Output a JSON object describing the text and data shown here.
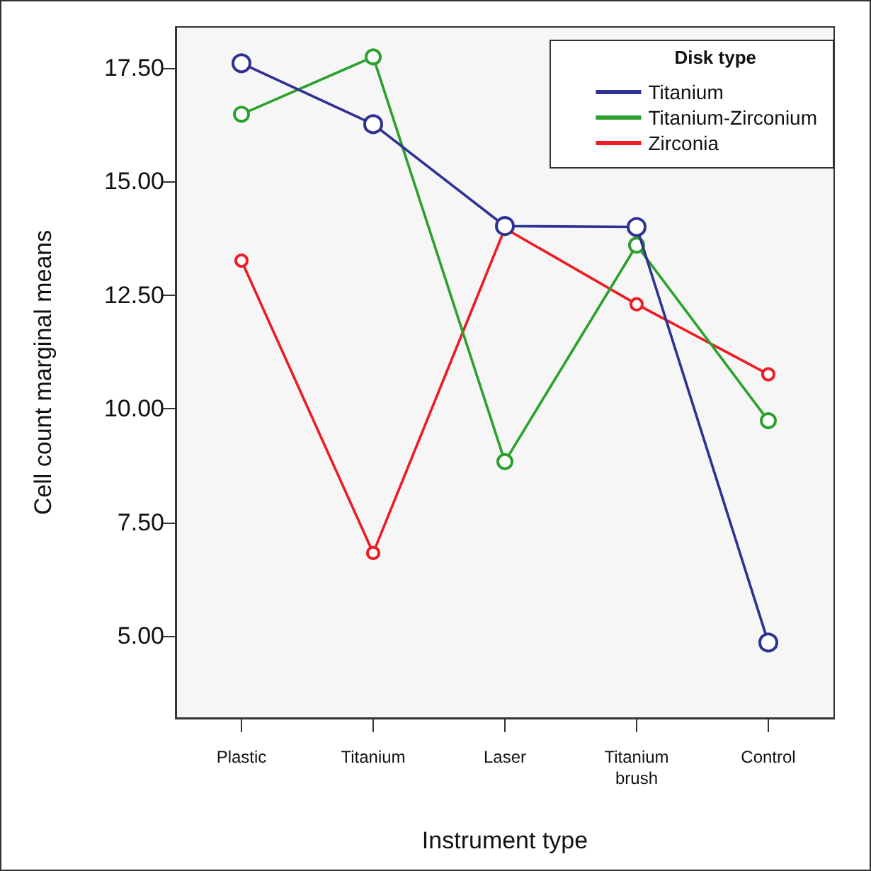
{
  "chart_data": {
    "type": "line",
    "xlabel": "Instrument type",
    "ylabel": "Cell count marginal means",
    "legend_title": "Disk type",
    "categories": [
      "Plastic",
      "Titanium",
      "Laser",
      "Titanium\nbrush",
      "Control"
    ],
    "series": [
      {
        "name": "Titanium",
        "color": "#2e3192",
        "values": [
          17.6,
          16.26,
          14.02,
          14.0,
          4.86
        ]
      },
      {
        "name": "Titanium-Zirconium",
        "color": "#2ca02c",
        "values": [
          16.48,
          17.74,
          8.84,
          13.6,
          9.74
        ]
      },
      {
        "name": "Zirconia",
        "color": "#ed1c24",
        "values": [
          13.26,
          6.83,
          13.97,
          12.3,
          10.76
        ]
      }
    ],
    "ylim": [
      3.2,
      18.4
    ],
    "yticks": [
      {
        "value": 5,
        "label": "5.00"
      },
      {
        "value": 7.5,
        "label": "7.50"
      },
      {
        "value": 10,
        "label": "10.00"
      },
      {
        "value": 12.5,
        "label": "12.50"
      },
      {
        "value": 15,
        "label": "15.00"
      },
      {
        "value": 17.5,
        "label": "17.50"
      }
    ],
    "grid": false,
    "legend": "top right",
    "marker": "circle",
    "line_style": "solid"
  }
}
